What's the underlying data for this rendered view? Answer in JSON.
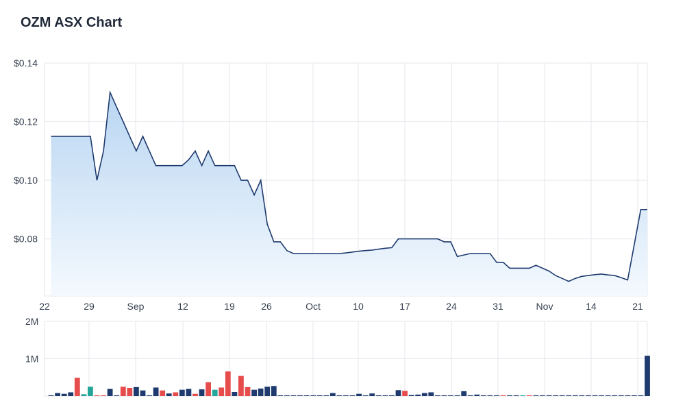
{
  "title": "OZM ASX Chart",
  "colors": {
    "line": "#1e3a6e",
    "area_top": "#b9d6f2",
    "area_bottom": "#f4f9fe",
    "grid": "#e5e7eb",
    "volume_blue": "#1e3a6e",
    "volume_red": "#e74c4c",
    "volume_teal": "#26a69a"
  },
  "chart_data": [
    {
      "type": "area",
      "x_tick_labels": [
        "22",
        "29",
        "Sep",
        "12",
        "19",
        "26",
        "Oct",
        "10",
        "17",
        "24",
        "31",
        "Nov",
        "14",
        "21"
      ],
      "y_tick_labels": [
        "$0.14",
        "$0.12",
        "$0.10",
        "$0.08"
      ],
      "y_ticks": [
        0.14,
        0.12,
        0.1,
        0.08
      ],
      "ylim": [
        0.0605,
        0.14
      ],
      "x_range_days": [
        0,
        92
      ],
      "grid": true,
      "x": [
        1,
        2,
        3,
        4,
        5,
        6,
        7,
        8,
        9,
        10,
        11,
        12,
        13,
        14,
        15,
        16,
        17,
        18,
        19,
        20,
        21,
        22,
        23,
        24,
        25,
        26,
        27,
        28,
        29,
        30,
        31,
        32,
        33,
        34,
        35,
        36,
        37,
        38,
        39,
        40,
        41,
        42,
        43,
        44,
        45,
        46,
        47,
        48,
        49,
        50,
        51,
        52,
        53,
        54,
        55,
        56,
        57,
        58,
        59,
        60,
        61,
        62,
        63,
        64,
        65,
        66,
        67,
        68,
        69,
        70,
        71,
        72,
        73,
        74,
        75,
        76,
        77,
        78,
        79,
        80,
        81,
        82,
        83,
        84,
        85,
        86,
        87,
        88,
        89,
        90,
        91,
        92
      ],
      "values": [
        0.115,
        0.115,
        0.115,
        0.115,
        0.115,
        0.115,
        0.115,
        0.1,
        0.11,
        0.13,
        0.125,
        0.12,
        0.115,
        0.11,
        0.115,
        0.11,
        0.105,
        0.105,
        0.105,
        0.105,
        0.105,
        0.107,
        0.11,
        0.105,
        0.11,
        0.105,
        0.105,
        0.105,
        0.105,
        0.1,
        0.1,
        0.095,
        0.1,
        0.085,
        0.079,
        0.079,
        0.076,
        0.075,
        0.075,
        0.075,
        0.075,
        0.075,
        0.075,
        0.075,
        0.075,
        0.0752,
        0.0755,
        0.0758,
        0.076,
        0.0762,
        0.0765,
        0.0768,
        0.077,
        0.08,
        0.08,
        0.08,
        0.08,
        0.08,
        0.08,
        0.08,
        0.079,
        0.079,
        0.074,
        0.0745,
        0.075,
        0.075,
        0.075,
        0.075,
        0.072,
        0.072,
        0.07,
        0.07,
        0.07,
        0.07,
        0.071,
        0.07,
        0.069,
        0.0675,
        0.0665,
        0.0655,
        0.0665,
        0.0672,
        0.0675,
        0.0678,
        0.068,
        0.0677,
        0.0675,
        0.0668,
        0.066,
        0.078,
        0.09,
        0.09
      ]
    },
    {
      "type": "bar",
      "y_tick_labels": [
        "2M",
        "1M"
      ],
      "y_ticks": [
        2000000,
        1000000
      ],
      "ylim": [
        0,
        2000000
      ],
      "x": [
        1,
        2,
        3,
        4,
        5,
        6,
        7,
        8,
        9,
        10,
        11,
        12,
        13,
        14,
        15,
        16,
        17,
        18,
        19,
        20,
        21,
        22,
        23,
        24,
        25,
        26,
        27,
        28,
        29,
        30,
        31,
        32,
        33,
        34,
        35,
        36,
        37,
        38,
        39,
        40,
        41,
        42,
        43,
        44,
        45,
        46,
        47,
        48,
        49,
        50,
        51,
        52,
        53,
        54,
        55,
        56,
        57,
        58,
        59,
        60,
        61,
        62,
        63,
        64,
        65,
        66,
        67,
        68,
        69,
        70,
        71,
        72,
        73,
        74,
        75,
        76,
        77,
        78,
        79,
        80,
        81,
        82,
        83,
        84,
        85,
        86,
        87,
        88,
        89,
        90,
        91,
        92
      ],
      "values": [
        20000,
        80000,
        60000,
        100000,
        490000,
        50000,
        250000,
        20000,
        20000,
        190000,
        20000,
        250000,
        220000,
        240000,
        150000,
        20000,
        230000,
        150000,
        70000,
        100000,
        170000,
        190000,
        60000,
        180000,
        370000,
        170000,
        230000,
        660000,
        110000,
        540000,
        240000,
        170000,
        200000,
        250000,
        270000,
        20000,
        20000,
        20000,
        20000,
        20000,
        20000,
        20000,
        20000,
        80000,
        20000,
        20000,
        20000,
        60000,
        20000,
        70000,
        20000,
        20000,
        20000,
        160000,
        140000,
        30000,
        40000,
        80000,
        100000,
        20000,
        20000,
        20000,
        20000,
        130000,
        20000,
        40000,
        20000,
        20000,
        20000,
        20000,
        20000,
        20000,
        20000,
        20000,
        20000,
        20000,
        20000,
        20000,
        20000,
        20000,
        20000,
        20000,
        20000,
        20000,
        20000,
        20000,
        20000,
        20000,
        20000,
        20000,
        20000,
        1080000
      ],
      "bar_colors": [
        "blue",
        "blue",
        "blue",
        "blue",
        "red",
        "teal",
        "teal",
        "red",
        "red",
        "blue",
        "blue",
        "red",
        "red",
        "blue",
        "blue",
        "blue",
        "blue",
        "red",
        "blue",
        "red",
        "blue",
        "blue",
        "red",
        "blue",
        "red",
        "teal",
        "red",
        "red",
        "blue",
        "red",
        "red",
        "blue",
        "blue",
        "blue",
        "blue",
        "blue",
        "blue",
        "blue",
        "blue",
        "blue",
        "blue",
        "blue",
        "blue",
        "blue",
        "blue",
        "blue",
        "blue",
        "blue",
        "blue",
        "blue",
        "blue",
        "blue",
        "blue",
        "blue",
        "red",
        "blue",
        "blue",
        "blue",
        "blue",
        "blue",
        "blue",
        "blue",
        "blue",
        "blue",
        "blue",
        "blue",
        "blue",
        "blue",
        "blue",
        "red",
        "blue",
        "blue",
        "teal",
        "red",
        "blue",
        "blue",
        "blue",
        "blue",
        "blue",
        "blue",
        "blue",
        "blue",
        "blue",
        "blue",
        "blue",
        "blue",
        "blue",
        "blue",
        "blue",
        "blue",
        "blue",
        "blue"
      ]
    }
  ]
}
